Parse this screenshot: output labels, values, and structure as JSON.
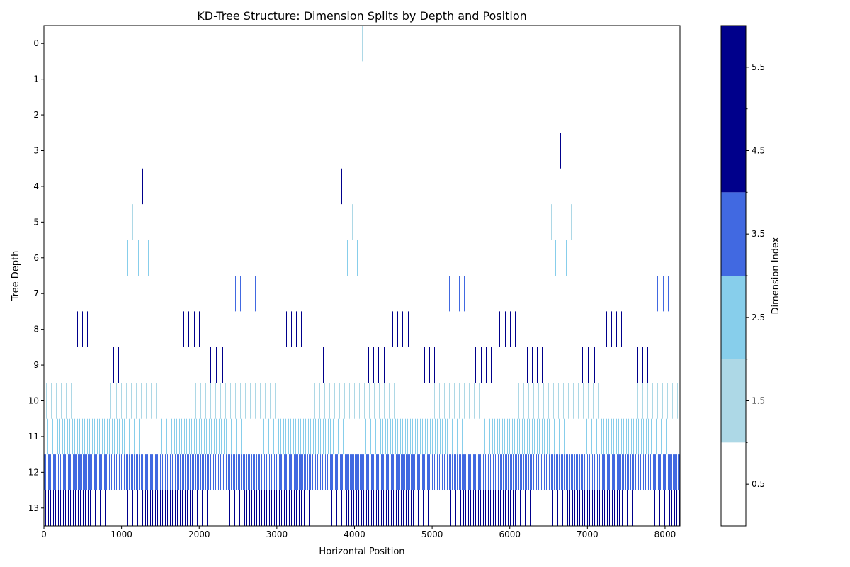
{
  "chart_data": {
    "type": "heatmap",
    "title": "KD-Tree Structure: Dimension Splits by Depth and Position",
    "xlabel": "Horizontal Position",
    "ylabel": "Tree Depth",
    "xlim": [
      0,
      8192
    ],
    "x_ticks": [
      0,
      1000,
      2000,
      3000,
      4000,
      5000,
      6000,
      7000,
      8000
    ],
    "y_ticks": [
      0,
      1,
      2,
      3,
      4,
      5,
      6,
      7,
      8,
      9,
      10,
      11,
      12,
      13
    ],
    "grid": false,
    "colorbar": {
      "label": "Dimension Index",
      "tick_labels": [
        "0.5",
        "1.5",
        "2.5",
        "3.5",
        "4.5",
        "5.5"
      ],
      "tick_values": [
        0.5,
        1.5,
        2.5,
        3.5,
        4.5,
        5.5
      ],
      "range": [
        0,
        6
      ],
      "bins": [
        {
          "from": 0,
          "to": 1,
          "color": "#ffffff"
        },
        {
          "from": 1,
          "to": 2,
          "color": "#add8e6"
        },
        {
          "from": 2,
          "to": 3,
          "color": "#87ceeb"
        },
        {
          "from": 3,
          "to": 4,
          "color": "#4169e1"
        },
        {
          "from": 4,
          "to": 6,
          "color": "#00008b"
        }
      ]
    },
    "dimension_colors": {
      "1": "#add8e6",
      "2": "#87ceeb",
      "3": "#4169e1",
      "4": "#00008b",
      "5": "#00008b"
    },
    "rows": [
      {
        "depth": 0,
        "dim": 1,
        "x": [
          4096
        ]
      },
      {
        "depth": 3,
        "dim": 4,
        "x": [
          6650
        ]
      },
      {
        "depth": 4,
        "dim": 4,
        "x": [
          1270,
          3830
        ]
      },
      {
        "depth": 5,
        "dim": 1,
        "x": [
          1140,
          3970,
          6530,
          6790
        ]
      },
      {
        "depth": 6,
        "dim": 2,
        "x": [
          1080,
          1210,
          1340,
          3900,
          4030,
          6590,
          6720
        ]
      },
      {
        "depth": 7,
        "dim": 3,
        "x": [
          2460,
          2530,
          2600,
          2660,
          2720,
          5220,
          5290,
          5350,
          5410,
          7900,
          7970,
          8040,
          8110,
          8170
        ]
      },
      {
        "depth": 8,
        "dim": 4,
        "groups": [
          [
            430,
            4,
            65
          ],
          [
            1800,
            4,
            65
          ],
          [
            3120,
            4,
            65
          ],
          [
            4490,
            4,
            65
          ],
          [
            5870,
            4,
            65
          ],
          [
            7240,
            4,
            65
          ]
        ]
      },
      {
        "depth": 9,
        "dim": 4,
        "groups": [
          [
            100,
            4,
            65
          ],
          [
            760,
            4,
            65
          ],
          [
            1410,
            4,
            65
          ],
          [
            2140,
            3,
            80
          ],
          [
            2790,
            4,
            65
          ],
          [
            3510,
            3,
            80
          ],
          [
            4180,
            4,
            65
          ],
          [
            4830,
            4,
            65
          ],
          [
            5560,
            4,
            65
          ],
          [
            6220,
            4,
            65
          ],
          [
            6930,
            3,
            80
          ],
          [
            7580,
            4,
            65
          ]
        ]
      },
      {
        "depth": 10,
        "dim": 1,
        "step": 64,
        "start": 30,
        "end": 8192
      },
      {
        "depth": 11,
        "dim": 2,
        "step": 32,
        "start": 10,
        "end": 8192
      },
      {
        "depth": 12,
        "dim": 3,
        "step": 16,
        "start": 4,
        "end": 8192
      },
      {
        "depth": 13,
        "dim": 4,
        "step": 32,
        "start": 20,
        "end": 8192
      }
    ]
  }
}
